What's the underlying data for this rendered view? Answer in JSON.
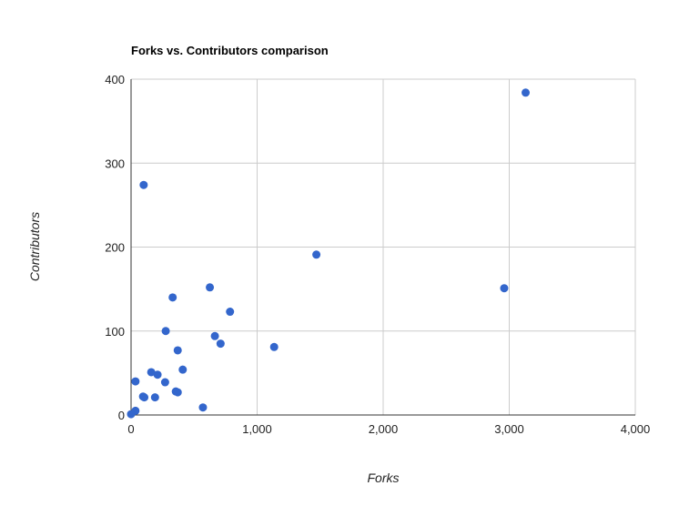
{
  "chart_data": {
    "type": "scatter",
    "title": "Forks vs. Contributors comparison",
    "xlabel": "Forks",
    "ylabel": "Contributors",
    "xlim": [
      0,
      4000
    ],
    "ylim": [
      0,
      400
    ],
    "x_ticks": [
      "0",
      "1,000",
      "2,000",
      "3,000",
      "4,000"
    ],
    "y_ticks": [
      "0",
      "100",
      "200",
      "300",
      "400"
    ],
    "grid": true,
    "legend": "none",
    "point_color": "#3366cc",
    "points": [
      {
        "x": 3130,
        "y": 384
      },
      {
        "x": 100,
        "y": 274
      },
      {
        "x": 1470,
        "y": 191
      },
      {
        "x": 2960,
        "y": 151
      },
      {
        "x": 625,
        "y": 152
      },
      {
        "x": 330,
        "y": 140
      },
      {
        "x": 785,
        "y": 123
      },
      {
        "x": 275,
        "y": 100
      },
      {
        "x": 665,
        "y": 94
      },
      {
        "x": 710,
        "y": 85
      },
      {
        "x": 1135,
        "y": 81
      },
      {
        "x": 370,
        "y": 77
      },
      {
        "x": 410,
        "y": 54
      },
      {
        "x": 160,
        "y": 51
      },
      {
        "x": 210,
        "y": 48
      },
      {
        "x": 35,
        "y": 40
      },
      {
        "x": 270,
        "y": 39
      },
      {
        "x": 355,
        "y": 28
      },
      {
        "x": 370,
        "y": 27
      },
      {
        "x": 95,
        "y": 22
      },
      {
        "x": 105,
        "y": 21
      },
      {
        "x": 190,
        "y": 21
      },
      {
        "x": 570,
        "y": 9
      },
      {
        "x": 35,
        "y": 5
      },
      {
        "x": 0,
        "y": 1
      }
    ]
  }
}
